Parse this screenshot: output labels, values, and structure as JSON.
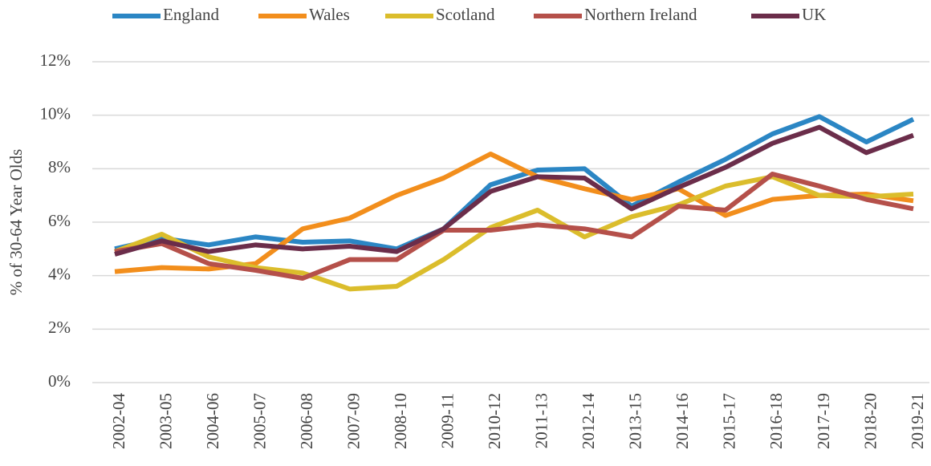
{
  "chart_data": {
    "type": "line",
    "y_axis_label": "% of 30-64 Year Olds",
    "categories": [
      "2002-04",
      "2003-05",
      "2004-06",
      "2005-07",
      "2006-08",
      "2007-09",
      "2008-10",
      "2009-11",
      "2010-12",
      "2011-13",
      "2012-14",
      "2013-15",
      "2014-16",
      "2015-17",
      "2016-18",
      "2017-19",
      "2018-20",
      "2019-21"
    ],
    "series": [
      {
        "name": "England",
        "color": "#2b86c4",
        "values": [
          5.0,
          5.4,
          5.15,
          5.45,
          5.25,
          5.3,
          5.0,
          5.75,
          7.4,
          7.95,
          8.0,
          6.6,
          7.5,
          8.35,
          9.3,
          9.95,
          9.0,
          9.85
        ]
      },
      {
        "name": "Wales",
        "color": "#f28e1c",
        "values": [
          4.15,
          4.3,
          4.25,
          4.45,
          5.75,
          6.15,
          7.0,
          7.65,
          8.55,
          7.7,
          7.25,
          6.85,
          7.25,
          6.25,
          6.85,
          7.0,
          7.05,
          6.8
        ]
      },
      {
        "name": "Scotland",
        "color": "#dbbd2c",
        "values": [
          4.9,
          5.55,
          4.7,
          4.3,
          4.1,
          3.5,
          3.6,
          4.6,
          5.8,
          6.45,
          5.45,
          6.2,
          6.65,
          7.35,
          7.7,
          7.0,
          6.95,
          7.05
        ]
      },
      {
        "name": "Northern Ireland",
        "color": "#b5504a",
        "values": [
          4.9,
          5.2,
          4.45,
          4.2,
          3.9,
          4.6,
          4.6,
          5.7,
          5.7,
          5.9,
          5.75,
          5.45,
          6.6,
          6.45,
          7.8,
          7.35,
          6.85,
          6.5
        ]
      },
      {
        "name": "UK",
        "color": "#6b2d4a",
        "values": [
          4.8,
          5.3,
          4.9,
          5.15,
          5.0,
          5.1,
          4.9,
          5.75,
          7.15,
          7.7,
          7.65,
          6.5,
          7.3,
          8.05,
          8.95,
          9.55,
          8.6,
          9.25
        ]
      }
    ],
    "ylim": [
      0,
      12
    ],
    "yticks": [
      {
        "value": 0,
        "label": "0%"
      },
      {
        "value": 2,
        "label": "2%"
      },
      {
        "value": 4,
        "label": "4%"
      },
      {
        "value": 6,
        "label": "6%"
      },
      {
        "value": 8,
        "label": "8%"
      },
      {
        "value": 10,
        "label": "10%"
      },
      {
        "value": 12,
        "label": "12%"
      }
    ],
    "grid": true,
    "legend": "top"
  }
}
